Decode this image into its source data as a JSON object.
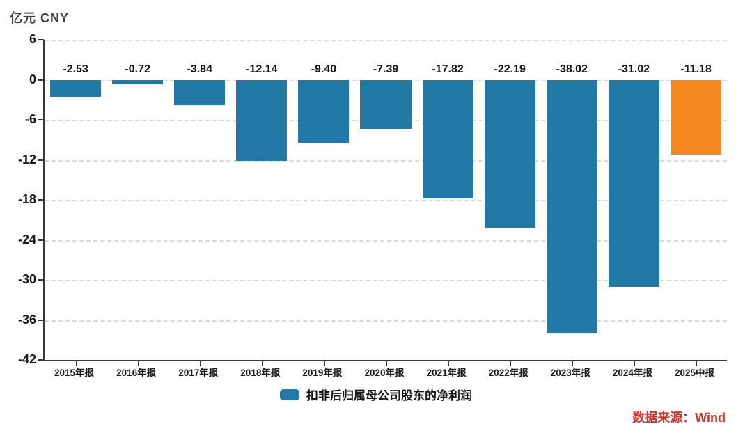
{
  "unit_label": "亿元 CNY",
  "legend_label": "扣非后归属母公司股东的净利润",
  "source_label": "数据来源：Wind",
  "colors": {
    "bar": "#2279A5",
    "highlight": "#F5881F",
    "source_text": "#D4312C",
    "axis": "#3a3a3a",
    "grid": "#d9d9d9"
  },
  "chart_data": {
    "type": "bar",
    "title": "",
    "xlabel": "",
    "ylabel": "亿元 CNY",
    "categories": [
      "2015年报",
      "2016年报",
      "2017年报",
      "2018年报",
      "2019年报",
      "2020年报",
      "2021年报",
      "2022年报",
      "2023年报",
      "2024年报",
      "2025中报"
    ],
    "values": [
      -2.53,
      -0.72,
      -3.84,
      -12.14,
      -9.4,
      -7.39,
      -17.82,
      -22.19,
      -38.02,
      -31.02,
      -11.18
    ],
    "value_labels": [
      "-2.53",
      "-0.72",
      "-3.84",
      "-12.14",
      "-9.40",
      "-7.39",
      "-17.82",
      "-22.19",
      "-38.02",
      "-31.02",
      "-11.18"
    ],
    "series_name": "扣非后归属母公司股东的净利润",
    "ylim": [
      -42,
      6
    ],
    "ytick_step": 6,
    "yticks": [
      "6",
      "0",
      "-6",
      "-12",
      "-18",
      "-24",
      "-30",
      "-36",
      "-42"
    ],
    "grid": "dashed horizontal",
    "legend_position": "bottom-center",
    "highlight_index": 10,
    "bar_color": "#2279A5",
    "highlight_color": "#F5881F",
    "annotation": "数据来源：Wind"
  }
}
